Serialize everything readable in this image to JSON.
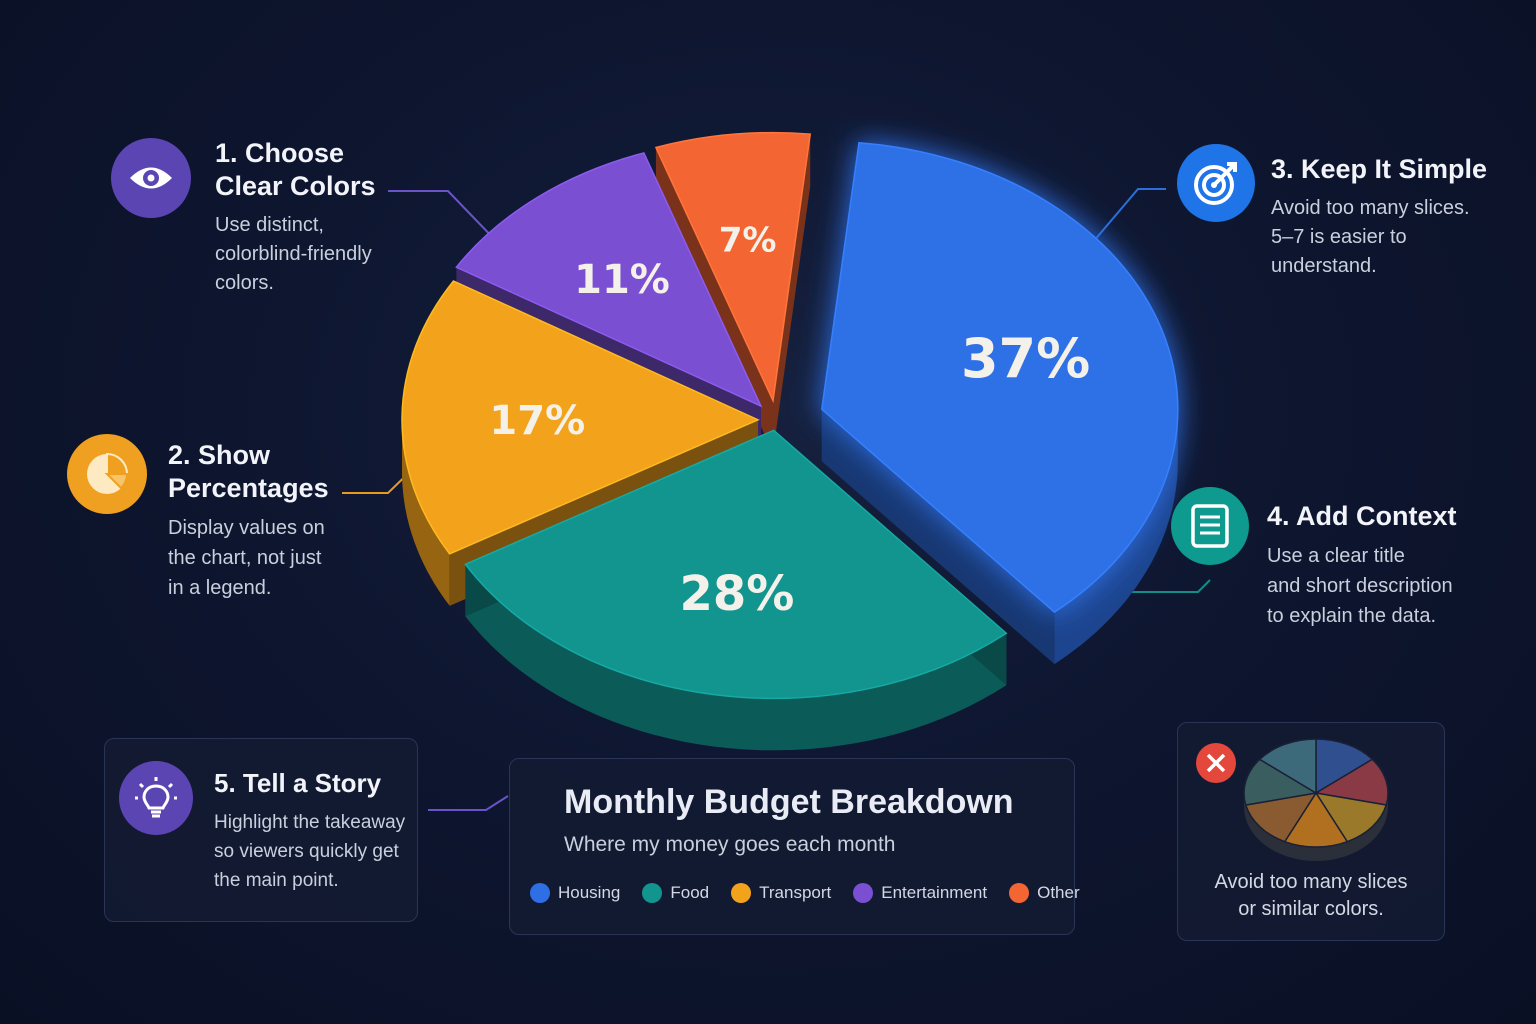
{
  "chart_data": {
    "type": "pie",
    "title": "Monthly Budget Breakdown",
    "subtitle": "Where my money goes each month",
    "categories": [
      "Housing",
      "Food",
      "Transport",
      "Entertainment",
      "Other"
    ],
    "values": [
      37,
      28,
      17,
      11,
      7
    ],
    "labels": [
      "37%",
      "28%",
      "17%",
      "11%",
      "7%"
    ],
    "colors": [
      "#2f6fe6",
      "#12948f",
      "#f3a21c",
      "#7a4fd1",
      "#f36633"
    ],
    "legend_position": "bottom"
  },
  "tips": {
    "t1": {
      "title_line1": "1. Choose",
      "title_line2": "Clear Colors",
      "desc1": "Use distinct,",
      "desc2": "colorblind-friendly",
      "desc3": "colors.",
      "icon": "eye-icon"
    },
    "t2": {
      "title_line1": "2. Show",
      "title_line2": "Percentages",
      "desc1": "Display values on",
      "desc2": "the chart, not just",
      "desc3": "in a legend.",
      "icon": "pie-chart-icon"
    },
    "t3": {
      "title": "3. Keep It Simple",
      "desc1": "Avoid too many slices.",
      "desc2": "5–7 is easier to",
      "desc3": "understand.",
      "icon": "target-icon"
    },
    "t4": {
      "title": "4. Add Context",
      "desc1": "Use a clear title",
      "desc2": "and short description",
      "desc3": "to explain the data.",
      "icon": "document-icon"
    },
    "t5": {
      "title": "5. Tell a Story",
      "desc1": "Highlight the takeaway",
      "desc2": "so viewers quickly get",
      "desc3": "the main point.",
      "icon": "lightbulb-icon"
    }
  },
  "warning": {
    "line1": "Avoid too many slices",
    "line2": "or similar colors.",
    "icon": "close-icon",
    "bad_pie_colors": [
      "#2f4f8f",
      "#8a3a44",
      "#9a7a2a",
      "#b07020",
      "#8a5a30",
      "#3a5e60",
      "#3c6a7a"
    ]
  },
  "colors": {
    "accent_purple": "#6b4fc8",
    "accent_orange": "#f0a020",
    "accent_blue": "#1f74e8",
    "accent_teal": "#0e9a8e",
    "danger": "#e4473c"
  }
}
